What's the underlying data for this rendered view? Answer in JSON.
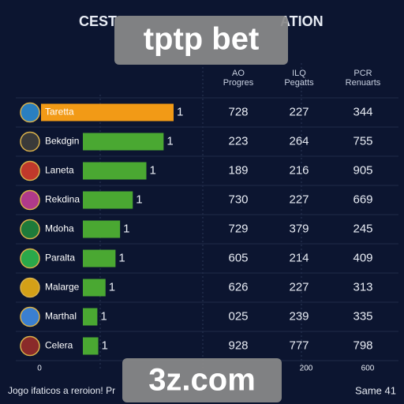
{
  "header": {
    "title_left": "CEST",
    "title_right": "ATION"
  },
  "watermarks": [
    "tptp bet",
    "3z.com"
  ],
  "columns": [
    [
      "AO",
      "Progres"
    ],
    [
      "ILQ",
      "Pegatts"
    ],
    [
      "PCR",
      "Renuarts"
    ]
  ],
  "rows": [
    {
      "name": "Taretta",
      "bar": 100,
      "bar_label": "1",
      "cells": [
        "728",
        "227",
        "344"
      ]
    },
    {
      "name": "Bekdgin",
      "bar": 89,
      "bar_label": "1",
      "cells": [
        "223",
        "264",
        "755"
      ]
    },
    {
      "name": "Laneta",
      "bar": 70,
      "bar_label": "1",
      "cells": [
        "189",
        "216",
        "905"
      ]
    },
    {
      "name": "Rekdina",
      "bar": 55,
      "bar_label": "1",
      "cells": [
        "730",
        "227",
        "669"
      ]
    },
    {
      "name": "Mdoha",
      "bar": 41,
      "bar_label": "1",
      "cells": [
        "729",
        "379",
        "245"
      ]
    },
    {
      "name": "Paralta",
      "bar": 36,
      "bar_label": "1",
      "cells": [
        "605",
        "214",
        "409"
      ]
    },
    {
      "name": "Malarge",
      "bar": 25,
      "bar_label": "1",
      "cells": [
        "626",
        "227",
        "313"
      ]
    },
    {
      "name": "Marthal",
      "bar": 16,
      "bar_label": "1",
      "cells": [
        "025",
        "239",
        "335"
      ]
    },
    {
      "name": "Celera",
      "bar": 17,
      "bar_label": "1",
      "cells": [
        "928",
        "777",
        "798"
      ]
    }
  ],
  "axis_labels": [
    "0",
    "200",
    "600"
  ],
  "footer": {
    "left": "Jogo ifaticos a reroion! Pr",
    "right": "Same 41"
  }
}
